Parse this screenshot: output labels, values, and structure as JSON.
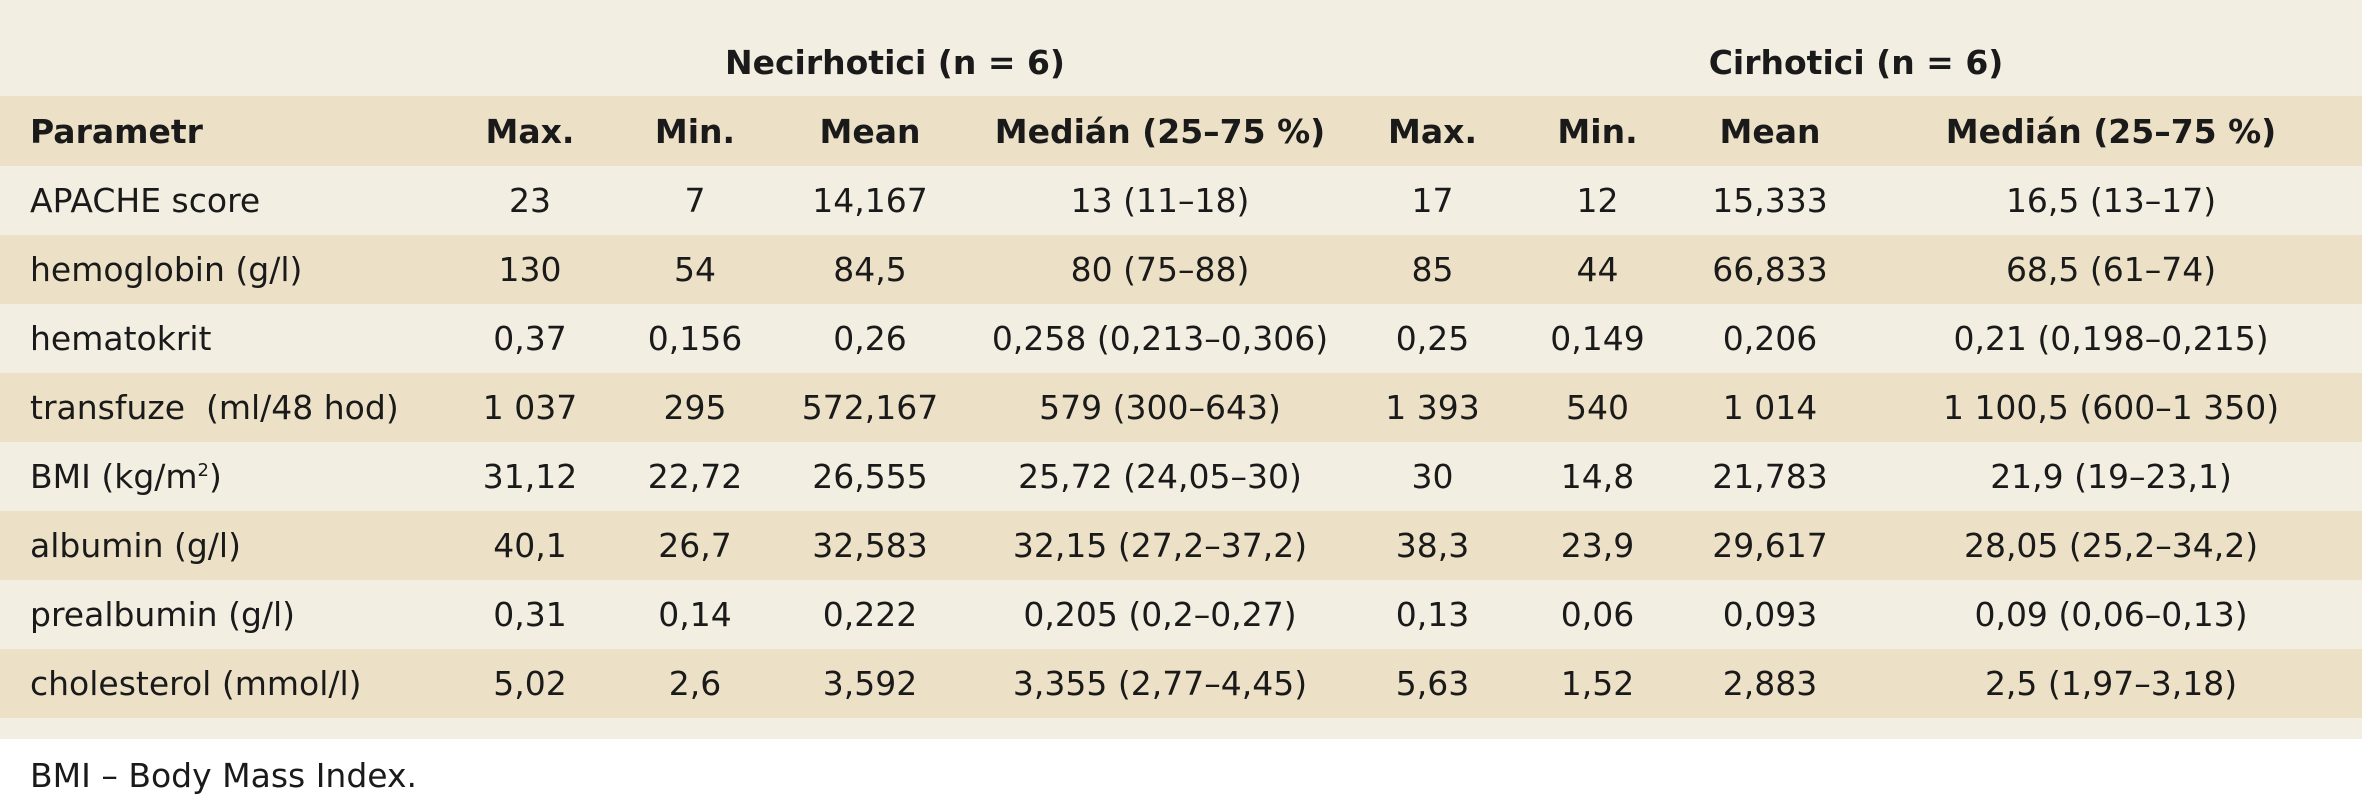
{
  "groups": {
    "necirhotici": "Necirhotici (n = 6)",
    "cirhotici": "Cirhotici (n = 6)"
  },
  "headers": [
    "Parametr",
    "Max.",
    "Min.",
    "Mean",
    "Medián (25–75 %)",
    "Max.",
    "Min.",
    "Mean",
    "Medián (25–75 %)"
  ],
  "rows": [
    {
      "param": "APACHE score",
      "cells": [
        "23",
        "7",
        "14,167",
        "13 (11–18)",
        "17",
        "12",
        "15,333",
        "16,5 (13–17)"
      ]
    },
    {
      "param": "hemoglobin (g/l)",
      "cells": [
        "130",
        "54",
        "84,5",
        "80 (75–88)",
        "85",
        "44",
        "66,833",
        "68,5 (61–74)"
      ]
    },
    {
      "param": "hematokrit",
      "cells": [
        "0,37",
        "0,156",
        "0,26",
        "0,258 (0,213–0,306)",
        "0,25",
        "0,149",
        "0,206",
        "0,21 (0,198–0,215)"
      ]
    },
    {
      "param": "transfuze  (ml/48 hod)",
      "cells": [
        "1 037",
        "295",
        "572,167",
        "579 (300–643)",
        "1 393",
        "540",
        "1 014",
        "1 100,5 (600–1 350)"
      ]
    },
    {
      "param": "BMI (kg/m",
      "param_sup": "2",
      "param_end": ")",
      "cells": [
        "31,12",
        "22,72",
        "26,555",
        "25,72 (24,05–30)",
        "30",
        "14,8",
        "21,783",
        "21,9 (19–23,1)"
      ]
    },
    {
      "param": "albumin (g/l)",
      "cells": [
        "40,1",
        "26,7",
        "32,583",
        "32,15 (27,2–37,2)",
        "38,3",
        "23,9",
        "29,617",
        "28,05 (25,2–34,2)"
      ]
    },
    {
      "param": "prealbumin (g/l)",
      "cells": [
        "0,31",
        "0,14",
        "0,222",
        "0,205 (0,2–0,27)",
        "0,13",
        "0,06",
        "0,093",
        "0,09 (0,06–0,13)"
      ]
    },
    {
      "param": "cholesterol (mmol/l)",
      "cells": [
        "5,02",
        "2,6",
        "3,592",
        "3,355 (2,77–4,45)",
        "5,63",
        "1,52",
        "2,883",
        "2,5 (1,97–3,18)"
      ]
    }
  ],
  "footnote": "BMI – Body Mass Index."
}
